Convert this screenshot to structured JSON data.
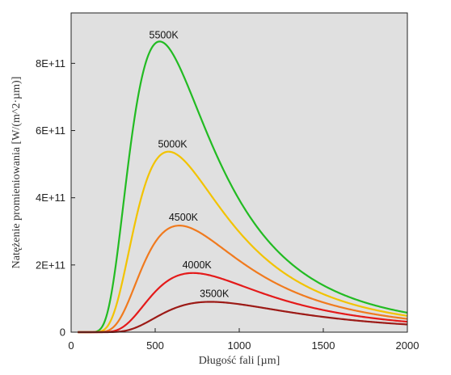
{
  "chart_data": {
    "type": "line",
    "xlabel": "Długość fali [µm]",
    "ylabel": "Natężenie promieniowania [W/(m^2·µm)]",
    "xlim": [
      0,
      2000
    ],
    "ylim": [
      0,
      950000000000.0
    ],
    "x_ticks": [
      0,
      500,
      1000,
      1500,
      2000
    ],
    "x_tick_labels": [
      "0",
      "500",
      "1000",
      "1500",
      "2000"
    ],
    "y_ticks": [
      0,
      200000000000.0,
      400000000000.0,
      600000000000.0,
      800000000000.0
    ],
    "y_tick_labels": [
      "0",
      "2E+11",
      "4E+11",
      "6E+11",
      "8E+11"
    ],
    "grid": false,
    "background": "#e0e0e0",
    "series": [
      {
        "name": "5500K",
        "temperature": 5500,
        "color": "#22bb22"
      },
      {
        "name": "5000K",
        "temperature": 5000,
        "color": "#f2c300"
      },
      {
        "name": "4500K",
        "temperature": 4500,
        "color": "#f07a1e"
      },
      {
        "name": "4000K",
        "temperature": 4000,
        "color": "#e41a1a"
      },
      {
        "name": "3500K",
        "temperature": 3500,
        "color": "#9c1a16"
      }
    ]
  }
}
